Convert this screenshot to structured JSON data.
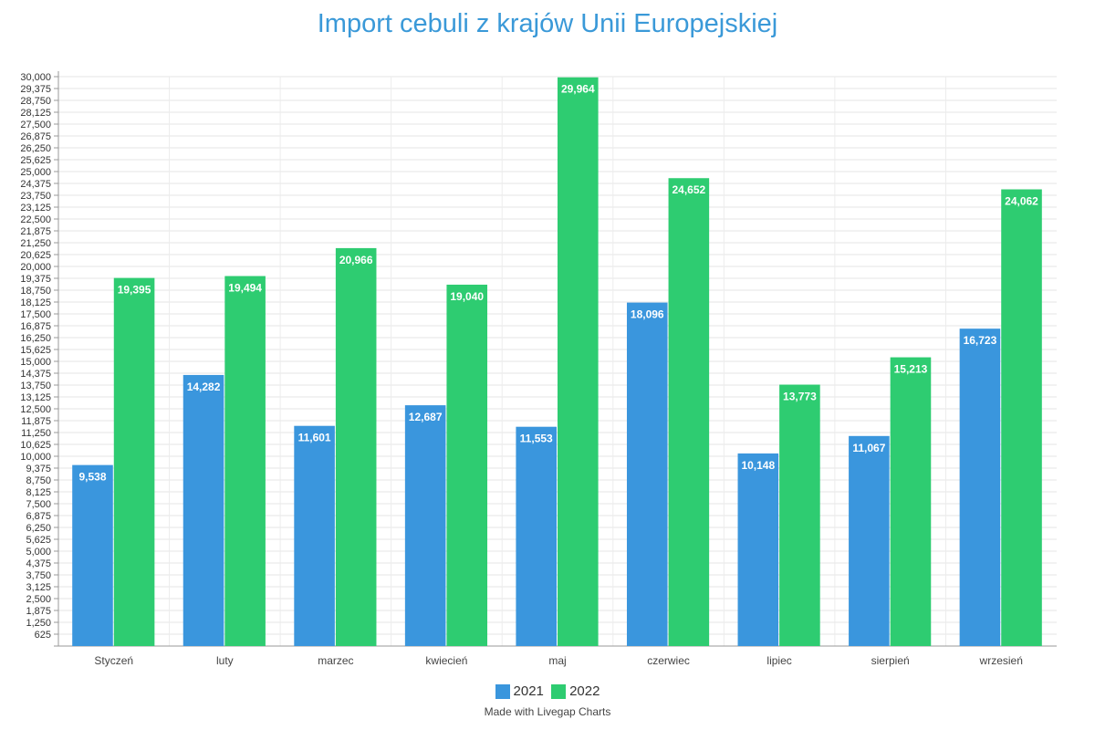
{
  "chart_data": {
    "type": "bar",
    "title": "Import cebuli z krajów Unii Europejskiej",
    "categories": [
      "Styczeń",
      "luty",
      "marzec",
      "kwiecień",
      "maj",
      "czerwiec",
      "lipiec",
      "sierpień",
      "wrzesień"
    ],
    "series": [
      {
        "name": "2021",
        "color": "#3a96dd",
        "values": [
          9538,
          14282,
          11601,
          12687,
          11553,
          18096,
          10148,
          11067,
          16723
        ]
      },
      {
        "name": "2022",
        "color": "#2ecc71",
        "values": [
          19395,
          19494,
          20966,
          19040,
          29964,
          24652,
          13773,
          15213,
          24062
        ]
      }
    ],
    "ylim": [
      0,
      30000
    ],
    "ytick_step": 625,
    "ytick_labels": [
      "625",
      "1,250",
      "1,875",
      "2,500",
      "3,125",
      "3,750",
      "4,375",
      "5,000",
      "5,625",
      "6,250",
      "6,875",
      "7,500",
      "8,125",
      "8,750",
      "9,375",
      "10,000",
      "10,625",
      "11,250",
      "11,875",
      "12,500",
      "13,125",
      "13,750",
      "14,375",
      "15,000",
      "15,625",
      "16,250",
      "16,875",
      "17,500",
      "18,125",
      "18,750",
      "19,375",
      "20,000",
      "20,625",
      "21,250",
      "21,875",
      "22,500",
      "23,125",
      "23,750",
      "24,375",
      "25,000",
      "25,625",
      "26,250",
      "26,875",
      "27,500",
      "28,125",
      "28,750",
      "29,375",
      "30,000"
    ],
    "data_labels": {
      "2021": [
        "9,538",
        "14,282",
        "11,601",
        "12,687",
        "11,553",
        "18,096",
        "10,148",
        "11,067",
        "16,723"
      ],
      "2022": [
        "19,395",
        "19,494",
        "20,966",
        "19,040",
        "29,964",
        "24,652",
        "13,773",
        "15,213",
        "24,062"
      ]
    },
    "xlabel": "",
    "ylabel": "",
    "grid": true,
    "legend": "bottom-center"
  },
  "footer": {
    "credit": "Made with Livegap Charts"
  }
}
